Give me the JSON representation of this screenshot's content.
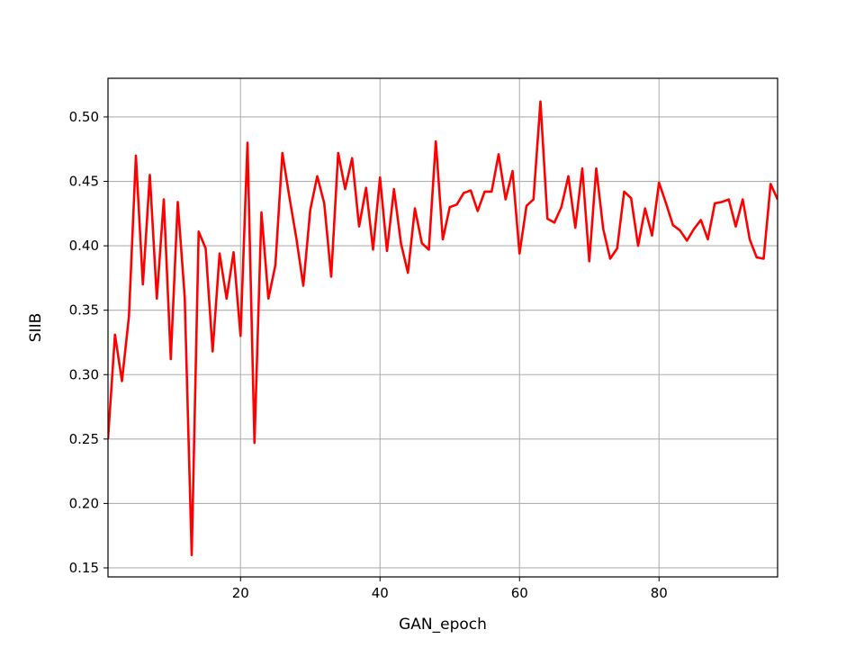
{
  "chart_data": {
    "type": "line",
    "title": "",
    "xlabel": "GAN_epoch",
    "ylabel": "SIIB",
    "xlim": [
      1,
      97
    ],
    "ylim": [
      0.143,
      0.53
    ],
    "grid": true,
    "x_ticks": [
      20,
      40,
      60,
      80
    ],
    "x_tick_labels": [
      "20",
      "40",
      "60",
      "80"
    ],
    "y_ticks": [
      0.15,
      0.2,
      0.25,
      0.3,
      0.35,
      0.4,
      0.45,
      0.5
    ],
    "y_tick_labels": [
      "0.15",
      "0.20",
      "0.25",
      "0.30",
      "0.35",
      "0.40",
      "0.45",
      "0.50"
    ],
    "series": [
      {
        "color": "#ff0000",
        "x": [
          1,
          2,
          3,
          4,
          5,
          6,
          7,
          8,
          9,
          10,
          11,
          12,
          13,
          14,
          15,
          16,
          17,
          18,
          19,
          20,
          21,
          22,
          23,
          24,
          25,
          26,
          27,
          28,
          29,
          30,
          31,
          32,
          33,
          34,
          35,
          36,
          37,
          38,
          39,
          40,
          41,
          42,
          43,
          44,
          45,
          46,
          47,
          48,
          49,
          50,
          51,
          52,
          53,
          54,
          55,
          56,
          57,
          58,
          59,
          60,
          61,
          62,
          63,
          64,
          65,
          66,
          67,
          68,
          69,
          70,
          71,
          72,
          73,
          74,
          75,
          76,
          77,
          78,
          79,
          80,
          81,
          82,
          83,
          84,
          85,
          86,
          87,
          88,
          89,
          90,
          91,
          92,
          93,
          94,
          95,
          96,
          97
        ],
        "values": [
          0.25,
          0.331,
          0.295,
          0.345,
          0.47,
          0.37,
          0.455,
          0.359,
          0.436,
          0.312,
          0.434,
          0.36,
          0.16,
          0.411,
          0.398,
          0.318,
          0.394,
          0.359,
          0.395,
          0.33,
          0.48,
          0.247,
          0.426,
          0.359,
          0.385,
          0.472,
          0.438,
          0.406,
          0.369,
          0.428,
          0.454,
          0.433,
          0.376,
          0.472,
          0.444,
          0.468,
          0.415,
          0.445,
          0.397,
          0.453,
          0.396,
          0.444,
          0.402,
          0.379,
          0.429,
          0.402,
          0.397,
          0.481,
          0.405,
          0.43,
          0.432,
          0.441,
          0.443,
          0.427,
          0.442,
          0.442,
          0.471,
          0.436,
          0.458,
          0.394,
          0.431,
          0.436,
          0.512,
          0.421,
          0.418,
          0.43,
          0.454,
          0.414,
          0.46,
          0.388,
          0.46,
          0.413,
          0.39,
          0.398,
          0.442,
          0.437,
          0.4,
          0.429,
          0.408,
          0.449,
          0.433,
          0.416,
          0.412,
          0.404,
          0.413,
          0.42,
          0.405,
          0.433,
          0.434,
          0.436,
          0.415,
          0.436,
          0.405,
          0.391,
          0.39,
          0.448,
          0.436
        ]
      }
    ]
  }
}
